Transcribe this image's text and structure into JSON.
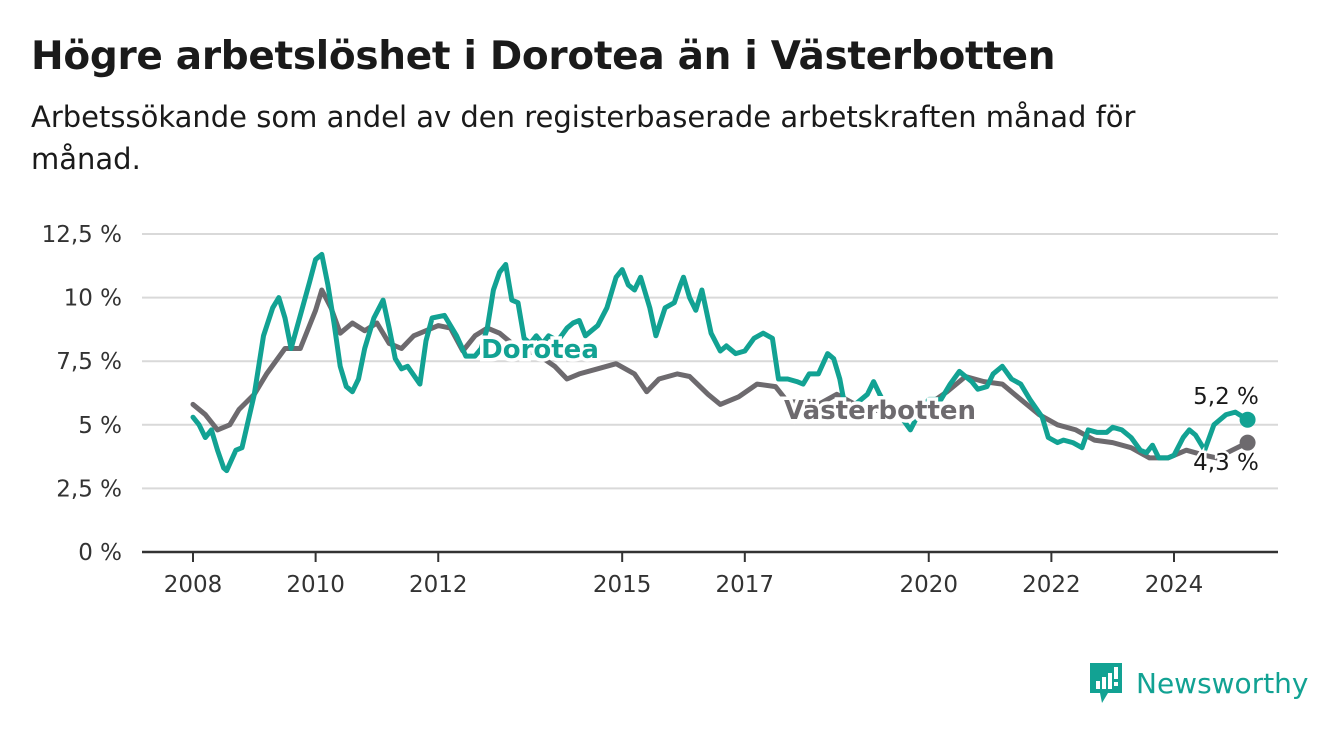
{
  "title": "Högre arbetslöshet i Dorotea än i Västerbotten",
  "subtitle": "Arbetssökande som andel av den registerbaserade arbetskraften månad för månad.",
  "brand": {
    "name": "Newsworthy",
    "color": "#12a293"
  },
  "chart_data": {
    "type": "line",
    "ylim": [
      0,
      12.5
    ],
    "xlim": [
      2007.8,
      2025.6
    ],
    "y_ticks": [
      {
        "value": 0,
        "label": "0 %"
      },
      {
        "value": 2.5,
        "label": "2,5 %"
      },
      {
        "value": 5,
        "label": "5 %"
      },
      {
        "value": 7.5,
        "label": "7,5 %"
      },
      {
        "value": 10,
        "label": "10 %"
      },
      {
        "value": 12.5,
        "label": "12,5 %"
      }
    ],
    "x_ticks": [
      {
        "value": 2008,
        "label": "2008"
      },
      {
        "value": 2010,
        "label": "2010"
      },
      {
        "value": 2012,
        "label": "2012"
      },
      {
        "value": 2015,
        "label": "2015"
      },
      {
        "value": 2017,
        "label": "2017"
      },
      {
        "value": 2020,
        "label": "2020"
      },
      {
        "value": 2022,
        "label": "2022"
      },
      {
        "value": 2024,
        "label": "2024"
      }
    ],
    "grid": true,
    "series": [
      {
        "name": "Västerbotten",
        "color": "#6d6a6e",
        "end_label": "4,3 %",
        "points": [
          [
            2008.0,
            5.8
          ],
          [
            2008.2,
            5.4
          ],
          [
            2008.4,
            4.8
          ],
          [
            2008.6,
            5.0
          ],
          [
            2008.75,
            5.6
          ],
          [
            2009.0,
            6.2
          ],
          [
            2009.2,
            7.0
          ],
          [
            2009.5,
            8.0
          ],
          [
            2009.75,
            8.0
          ],
          [
            2010.0,
            9.5
          ],
          [
            2010.1,
            10.3
          ],
          [
            2010.25,
            9.6
          ],
          [
            2010.4,
            8.6
          ],
          [
            2010.6,
            9.0
          ],
          [
            2010.8,
            8.7
          ],
          [
            2011.0,
            9.0
          ],
          [
            2011.2,
            8.2
          ],
          [
            2011.4,
            8.0
          ],
          [
            2011.6,
            8.5
          ],
          [
            2011.8,
            8.7
          ],
          [
            2012.0,
            8.9
          ],
          [
            2012.2,
            8.8
          ],
          [
            2012.4,
            7.9
          ],
          [
            2012.6,
            8.5
          ],
          [
            2012.8,
            8.8
          ],
          [
            2013.0,
            8.6
          ],
          [
            2013.3,
            8.0
          ],
          [
            2013.6,
            7.8
          ],
          [
            2013.9,
            7.3
          ],
          [
            2014.1,
            6.8
          ],
          [
            2014.3,
            7.0
          ],
          [
            2014.6,
            7.2
          ],
          [
            2014.9,
            7.4
          ],
          [
            2015.2,
            7.0
          ],
          [
            2015.4,
            6.3
          ],
          [
            2015.6,
            6.8
          ],
          [
            2015.9,
            7.0
          ],
          [
            2016.1,
            6.9
          ],
          [
            2016.4,
            6.2
          ],
          [
            2016.6,
            5.8
          ],
          [
            2016.9,
            6.1
          ],
          [
            2017.2,
            6.6
          ],
          [
            2017.5,
            6.5
          ],
          [
            2017.7,
            5.9
          ],
          [
            2017.9,
            5.9
          ],
          [
            2018.2,
            5.8
          ],
          [
            2018.5,
            6.2
          ],
          [
            2018.8,
            5.8
          ],
          [
            2019.1,
            5.6
          ],
          [
            2019.4,
            5.4
          ],
          [
            2019.7,
            5.3
          ],
          [
            2020.0,
            5.8
          ],
          [
            2020.3,
            6.3
          ],
          [
            2020.6,
            6.9
          ],
          [
            2020.9,
            6.7
          ],
          [
            2021.2,
            6.6
          ],
          [
            2021.5,
            6.0
          ],
          [
            2021.8,
            5.4
          ],
          [
            2022.1,
            5.0
          ],
          [
            2022.4,
            4.8
          ],
          [
            2022.7,
            4.4
          ],
          [
            2023.0,
            4.3
          ],
          [
            2023.3,
            4.1
          ],
          [
            2023.6,
            3.7
          ],
          [
            2023.9,
            3.7
          ],
          [
            2024.2,
            4.0
          ],
          [
            2024.5,
            3.8
          ],
          [
            2024.7,
            3.7
          ],
          [
            2024.95,
            4.0
          ],
          [
            2025.2,
            4.3
          ]
        ]
      },
      {
        "name": "Dorotea",
        "color": "#12a293",
        "end_label": "5,2 %",
        "points": [
          [
            2008.0,
            5.3
          ],
          [
            2008.1,
            5.0
          ],
          [
            2008.2,
            4.5
          ],
          [
            2008.3,
            4.8
          ],
          [
            2008.4,
            4.0
          ],
          [
            2008.5,
            3.3
          ],
          [
            2008.55,
            3.2
          ],
          [
            2008.7,
            4.0
          ],
          [
            2008.8,
            4.1
          ],
          [
            2009.0,
            6.2
          ],
          [
            2009.15,
            8.5
          ],
          [
            2009.3,
            9.6
          ],
          [
            2009.4,
            10.0
          ],
          [
            2009.5,
            9.2
          ],
          [
            2009.6,
            8.0
          ],
          [
            2009.75,
            9.3
          ],
          [
            2009.9,
            10.6
          ],
          [
            2010.0,
            11.5
          ],
          [
            2010.1,
            11.7
          ],
          [
            2010.2,
            10.5
          ],
          [
            2010.3,
            9.0
          ],
          [
            2010.4,
            7.3
          ],
          [
            2010.5,
            6.5
          ],
          [
            2010.6,
            6.3
          ],
          [
            2010.7,
            6.8
          ],
          [
            2010.8,
            8.0
          ],
          [
            2010.95,
            9.2
          ],
          [
            2011.1,
            9.9
          ],
          [
            2011.2,
            8.8
          ],
          [
            2011.3,
            7.6
          ],
          [
            2011.4,
            7.2
          ],
          [
            2011.5,
            7.3
          ],
          [
            2011.7,
            6.6
          ],
          [
            2011.8,
            8.3
          ],
          [
            2011.9,
            9.2
          ],
          [
            2012.1,
            9.3
          ],
          [
            2012.3,
            8.5
          ],
          [
            2012.45,
            7.7
          ],
          [
            2012.6,
            7.7
          ],
          [
            2012.7,
            8.0
          ],
          [
            2012.8,
            8.8
          ],
          [
            2012.9,
            10.3
          ],
          [
            2013.0,
            11.0
          ],
          [
            2013.1,
            11.3
          ],
          [
            2013.2,
            9.9
          ],
          [
            2013.3,
            9.8
          ],
          [
            2013.4,
            8.4
          ],
          [
            2013.5,
            8.2
          ],
          [
            2013.6,
            8.5
          ],
          [
            2013.7,
            8.2
          ],
          [
            2013.8,
            8.5
          ],
          [
            2013.95,
            8.3
          ],
          [
            2014.1,
            8.8
          ],
          [
            2014.2,
            9.0
          ],
          [
            2014.3,
            9.1
          ],
          [
            2014.4,
            8.5
          ],
          [
            2014.5,
            8.7
          ],
          [
            2014.6,
            8.9
          ],
          [
            2014.75,
            9.6
          ],
          [
            2014.9,
            10.8
          ],
          [
            2015.0,
            11.1
          ],
          [
            2015.1,
            10.5
          ],
          [
            2015.2,
            10.3
          ],
          [
            2015.3,
            10.8
          ],
          [
            2015.45,
            9.6
          ],
          [
            2015.55,
            8.5
          ],
          [
            2015.7,
            9.6
          ],
          [
            2015.85,
            9.8
          ],
          [
            2015.95,
            10.5
          ],
          [
            2016.0,
            10.8
          ],
          [
            2016.1,
            10.0
          ],
          [
            2016.2,
            9.5
          ],
          [
            2016.3,
            10.3
          ],
          [
            2016.45,
            8.6
          ],
          [
            2016.6,
            7.9
          ],
          [
            2016.7,
            8.1
          ],
          [
            2016.85,
            7.8
          ],
          [
            2017.0,
            7.9
          ],
          [
            2017.15,
            8.4
          ],
          [
            2017.3,
            8.6
          ],
          [
            2017.45,
            8.4
          ],
          [
            2017.55,
            6.8
          ],
          [
            2017.7,
            6.8
          ],
          [
            2017.85,
            6.7
          ],
          [
            2017.95,
            6.6
          ],
          [
            2018.05,
            7.0
          ],
          [
            2018.2,
            7.0
          ],
          [
            2018.35,
            7.8
          ],
          [
            2018.45,
            7.6
          ],
          [
            2018.55,
            6.8
          ],
          [
            2018.65,
            5.5
          ],
          [
            2018.8,
            5.8
          ],
          [
            2019.0,
            6.2
          ],
          [
            2019.1,
            6.7
          ],
          [
            2019.2,
            6.2
          ],
          [
            2019.35,
            5.5
          ],
          [
            2019.55,
            5.3
          ],
          [
            2019.7,
            4.8
          ],
          [
            2019.85,
            5.5
          ],
          [
            2020.0,
            6.0
          ],
          [
            2020.2,
            6.0
          ],
          [
            2020.35,
            6.6
          ],
          [
            2020.5,
            7.1
          ],
          [
            2020.7,
            6.7
          ],
          [
            2020.8,
            6.4
          ],
          [
            2020.95,
            6.5
          ],
          [
            2021.05,
            7.0
          ],
          [
            2021.2,
            7.3
          ],
          [
            2021.35,
            6.8
          ],
          [
            2021.5,
            6.6
          ],
          [
            2021.65,
            6.0
          ],
          [
            2021.85,
            5.3
          ],
          [
            2021.95,
            4.5
          ],
          [
            2022.1,
            4.3
          ],
          [
            2022.2,
            4.4
          ],
          [
            2022.35,
            4.3
          ],
          [
            2022.5,
            4.1
          ],
          [
            2022.6,
            4.8
          ],
          [
            2022.75,
            4.7
          ],
          [
            2022.9,
            4.7
          ],
          [
            2023.0,
            4.9
          ],
          [
            2023.15,
            4.8
          ],
          [
            2023.3,
            4.5
          ],
          [
            2023.45,
            4.0
          ],
          [
            2023.55,
            3.9
          ],
          [
            2023.65,
            4.2
          ],
          [
            2023.75,
            3.7
          ],
          [
            2023.9,
            3.7
          ],
          [
            2024.0,
            3.8
          ],
          [
            2024.15,
            4.5
          ],
          [
            2024.25,
            4.8
          ],
          [
            2024.35,
            4.6
          ],
          [
            2024.5,
            4.0
          ],
          [
            2024.65,
            5.0
          ],
          [
            2024.85,
            5.4
          ],
          [
            2025.0,
            5.5
          ],
          [
            2025.2,
            5.2
          ]
        ]
      }
    ]
  }
}
